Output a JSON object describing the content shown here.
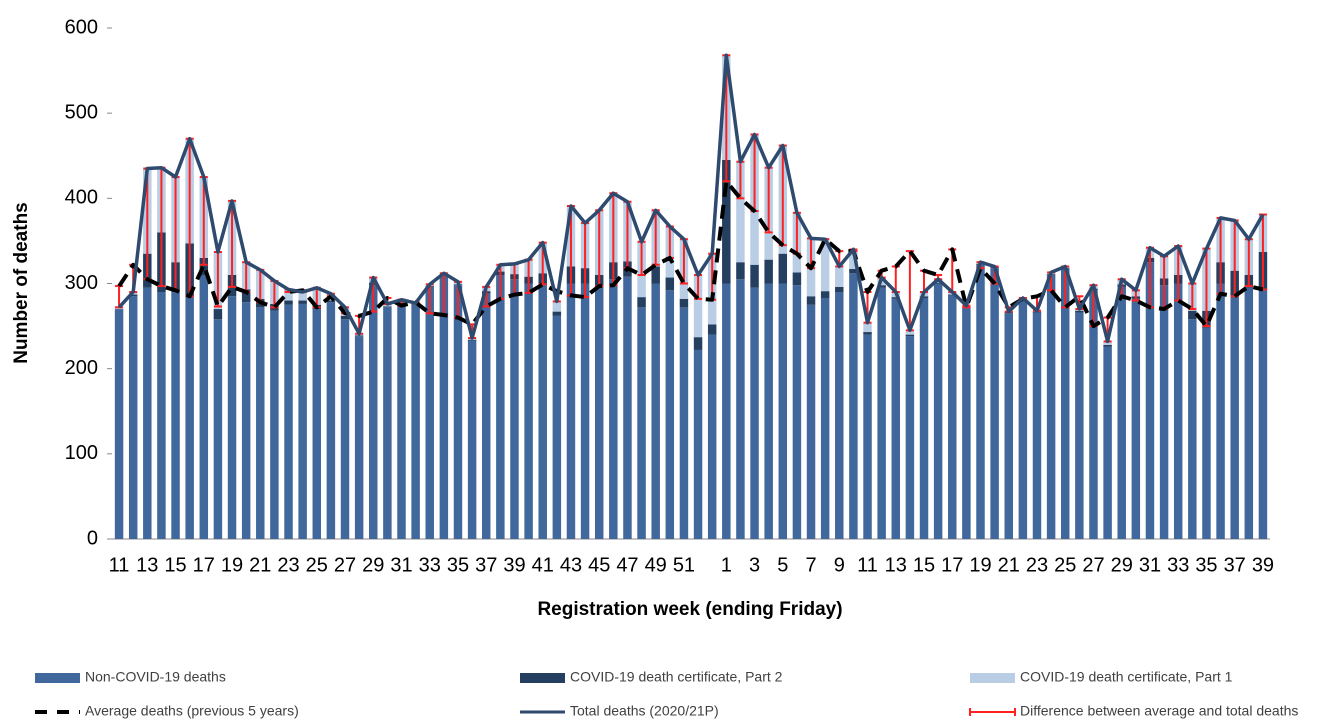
{
  "chart_data": {
    "type": "bar",
    "y_label": "Number of deaths",
    "x_label": "Registration week (ending Friday)",
    "categories": [
      "11",
      null,
      "13",
      null,
      "15",
      null,
      "17",
      null,
      "19",
      null,
      "21",
      null,
      "23",
      null,
      "25",
      null,
      "27",
      null,
      "29",
      null,
      "31",
      null,
      "33",
      null,
      "35",
      null,
      "37",
      null,
      "39",
      null,
      "41",
      null,
      "43",
      null,
      "45",
      null,
      "47",
      null,
      "49",
      null,
      "51",
      null,
      null,
      "1",
      null,
      "3",
      null,
      "5",
      null,
      "7",
      null,
      "9",
      null,
      "11",
      null,
      "13",
      null,
      "15",
      null,
      "17",
      null,
      "19",
      null,
      "21",
      null,
      "23",
      null,
      "25",
      null,
      "27",
      null,
      "29",
      null,
      "31",
      null,
      "33",
      null,
      "35",
      null,
      "37",
      null,
      "39"
    ],
    "ylim": [
      0,
      600
    ],
    "yticks": [
      0,
      100,
      200,
      300,
      400,
      500,
      600
    ],
    "series": [
      {
        "name": "Non-COVID-19 deaths",
        "color": "#41689c",
        "mark": "bar",
        "values": [
          270,
          285,
          295,
          290,
          290,
          285,
          310,
          258,
          285,
          278,
          272,
          268,
          275,
          276,
          270,
          278,
          258,
          238,
          298,
          272,
          278,
          275,
          296,
          308,
          298,
          233,
          288,
          310,
          305,
          300,
          300,
          262,
          300,
          300,
          295,
          305,
          308,
          272,
          300,
          292,
          272,
          222,
          240,
          300,
          305,
          295,
          300,
          300,
          298,
          275,
          283,
          290,
          312,
          240,
          295,
          282,
          238,
          283,
          300,
          286,
          271,
          322,
          318,
          265,
          281,
          266,
          310,
          316,
          266,
          292,
          226,
          296,
          282,
          325,
          298,
          300,
          258,
          248,
          300,
          285,
          295,
          292
        ]
      },
      {
        "name": "COVID-19 death certificate, Part 2",
        "color": "#243f60",
        "mark": "bar",
        "values": [
          0,
          2,
          40,
          70,
          35,
          62,
          20,
          12,
          25,
          15,
          10,
          8,
          5,
          4,
          5,
          2,
          4,
          1,
          3,
          1,
          1,
          1,
          1,
          1,
          1,
          1,
          3,
          4,
          6,
          8,
          12,
          5,
          20,
          18,
          15,
          20,
          18,
          12,
          20,
          15,
          10,
          15,
          12,
          145,
          20,
          27,
          28,
          35,
          15,
          10,
          8,
          6,
          5,
          3,
          3,
          2,
          2,
          2,
          1,
          1,
          1,
          1,
          1,
          1,
          1,
          1,
          1,
          2,
          2,
          2,
          2,
          3,
          3,
          5,
          8,
          10,
          10,
          20,
          25,
          30,
          15,
          45
        ]
      },
      {
        "name": "COVID-19 death certificate, Part 1",
        "color": "#b9cde5",
        "mark": "bar",
        "values": [
          2,
          3,
          100,
          76,
          100,
          123,
          95,
          67,
          87,
          32,
          34,
          27,
          13,
          10,
          20,
          8,
          10,
          2,
          6,
          3,
          2,
          1,
          2,
          3,
          3,
          2,
          5,
          8,
          12,
          20,
          36,
          12,
          71,
          53,
          76,
          81,
          70,
          65,
          66,
          60,
          70,
          73,
          83,
          123,
          118,
          153,
          108,
          127,
          70,
          68,
          61,
          24,
          23,
          11,
          9,
          6,
          5,
          5,
          4,
          3,
          2,
          2,
          1,
          1,
          1,
          1,
          2,
          2,
          2,
          4,
          4,
          6,
          7,
          12,
          26,
          34,
          32,
          73,
          52,
          59,
          42,
          44
        ]
      },
      {
        "name": "Average deaths (previous 5 years)",
        "color": "#000000",
        "mark": "line",
        "dashed": true,
        "values": [
          297,
          322,
          305,
          297,
          292,
          285,
          322,
          273,
          296,
          290,
          278,
          272,
          290,
          292,
          272,
          285,
          265,
          262,
          267,
          283,
          274,
          278,
          265,
          263,
          260,
          252,
          273,
          282,
          287,
          289,
          299,
          291,
          286,
          284,
          297,
          298,
          318,
          310,
          322,
          330,
          300,
          282,
          281,
          420,
          400,
          385,
          360,
          345,
          335,
          318,
          352,
          338,
          338,
          290,
          315,
          320,
          338,
          315,
          310,
          340,
          272,
          318,
          300,
          272,
          282,
          285,
          292,
          272,
          285,
          250,
          260,
          285,
          280,
          272,
          270,
          280,
          270,
          250,
          288,
          285,
          297,
          293
        ]
      },
      {
        "name": "Total deaths (2020/21P)",
        "color": "#2e4a6e",
        "mark": "line",
        "dashed": false,
        "values": [
          272,
          290,
          435,
          436,
          425,
          470,
          425,
          337,
          397,
          325,
          316,
          303,
          293,
          290,
          295,
          288,
          272,
          241,
          307,
          276,
          281,
          277,
          299,
          312,
          302,
          236,
          296,
          322,
          323,
          328,
          348,
          279,
          391,
          371,
          386,
          406,
          396,
          349,
          386,
          367,
          352,
          310,
          335,
          568,
          443,
          475,
          436,
          462,
          383,
          353,
          352,
          320,
          340,
          254,
          307,
          290,
          245,
          290,
          305,
          290,
          274,
          325,
          320,
          267,
          283,
          268,
          313,
          320,
          270,
          298,
          232,
          305,
          292,
          342,
          332,
          344,
          300,
          341,
          377,
          374,
          352,
          381
        ]
      },
      {
        "name": "Difference between average and total deaths",
        "color": "#ff2020",
        "mark": "errorbar"
      }
    ]
  }
}
